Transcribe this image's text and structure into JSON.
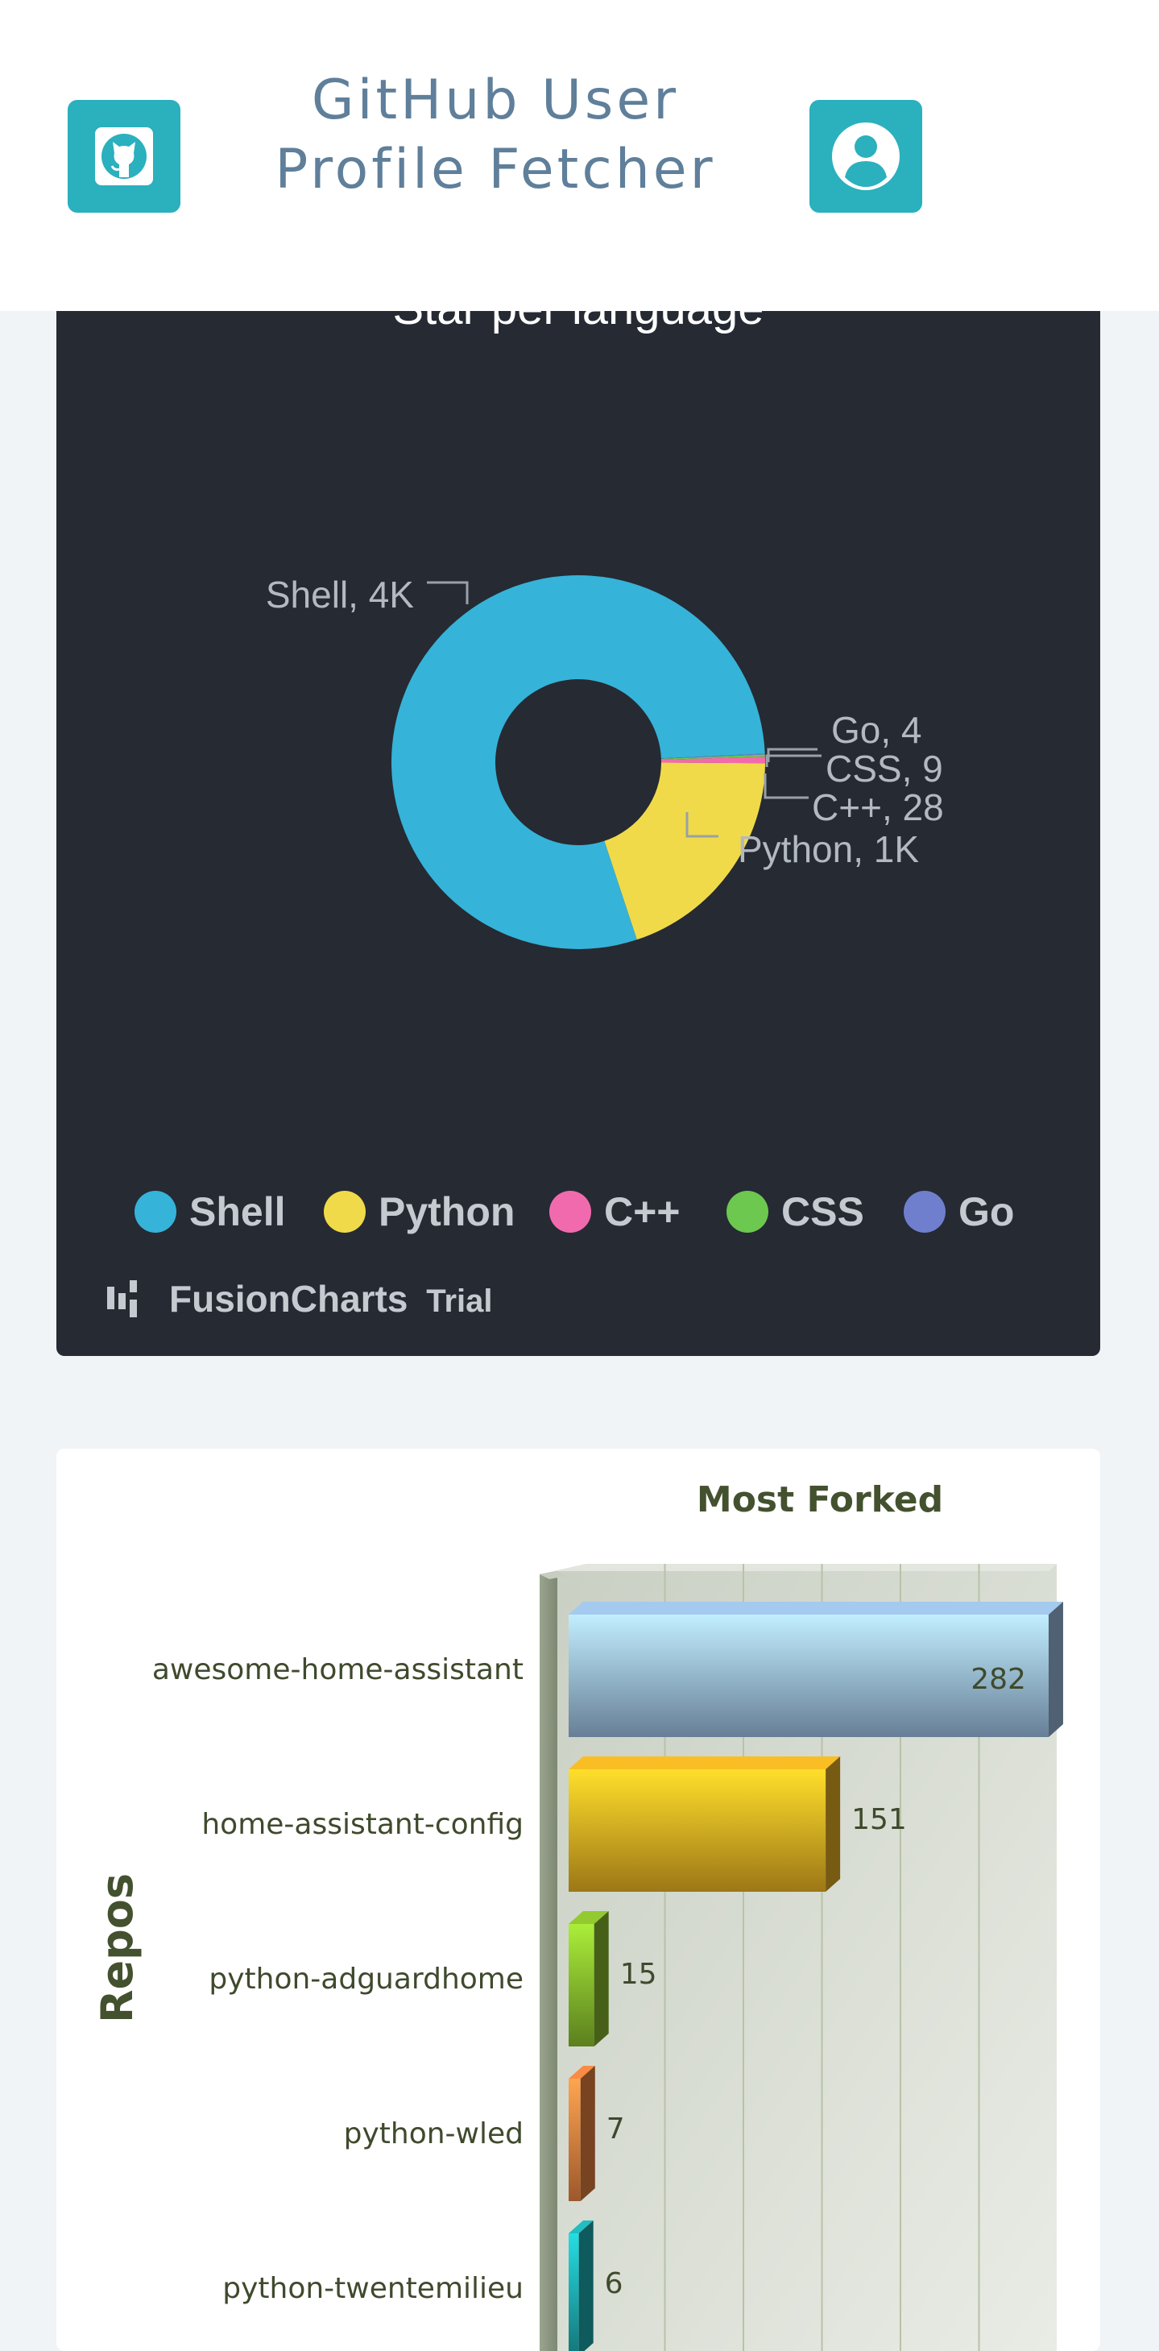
{
  "header": {
    "title_line1": "GitHub User",
    "title_line2": "Profile Fetcher",
    "github_icon": "github-icon",
    "user_icon": "user-avatar-icon",
    "accent_color": "#2bb0bd"
  },
  "chart_data": [
    {
      "type": "pie",
      "subtype": "doughnut",
      "title": "Star per language",
      "categories": [
        "Shell",
        "Python",
        "C++",
        "CSS",
        "Go"
      ],
      "values": [
        4000,
        1000,
        28,
        9,
        4
      ],
      "data_labels": [
        "Shell, 4K",
        "Python, 1K",
        "C++, 28",
        "CSS, 9",
        "Go, 4"
      ],
      "colors": [
        "#36b3d9",
        "#f0da49",
        "#f26aae",
        "#6cc84f",
        "#6f7fce"
      ],
      "legend": [
        "Shell",
        "Python",
        "C++",
        "CSS",
        "Go"
      ],
      "legend_position": "bottom",
      "background": "#262a33",
      "credit": "FusionCharts",
      "credit_suffix": "Trial"
    },
    {
      "type": "bar",
      "orientation": "horizontal",
      "style": "3d",
      "title": "Most Forked",
      "ylabel": "Repos",
      "categories": [
        "awesome-home-assistant",
        "home-assistant-config",
        "python-adguardhome",
        "python-wled",
        "python-twentemilieu"
      ],
      "values": [
        282,
        151,
        15,
        7,
        6
      ],
      "colors": [
        "#8fb0d0",
        "#d9a520",
        "#7fb02a",
        "#d87a3c",
        "#1ca4a8"
      ],
      "xlim": [
        0,
        300
      ]
    }
  ]
}
